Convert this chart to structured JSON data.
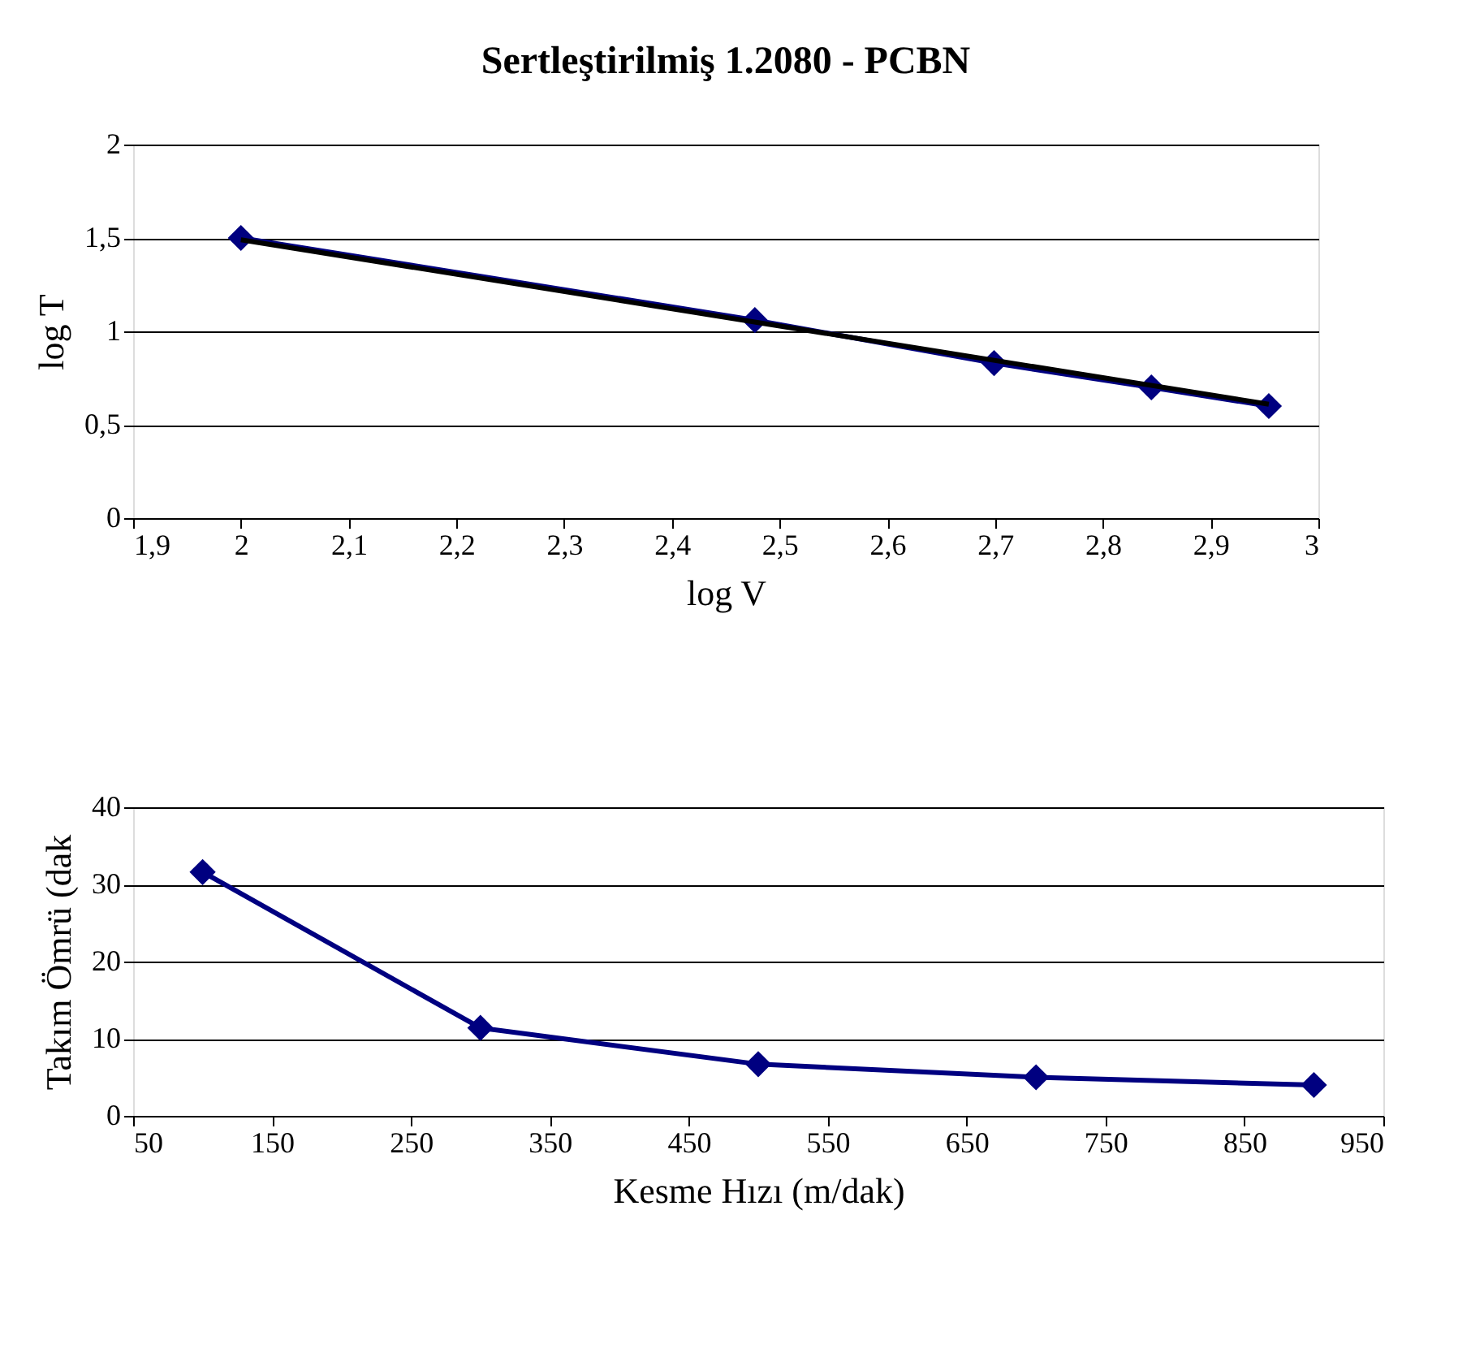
{
  "chart_data": [
    {
      "type": "line",
      "title": "Sertleştirilmiş 1.2080  - PCBN",
      "xlabel": "log V",
      "ylabel": "log T",
      "marker": "diamond",
      "grid": "y",
      "line_style": "solid",
      "series": [
        {
          "color": "#000080",
          "x": [
            2,
            2.477,
            2.699,
            2.845,
            2.954
          ],
          "values": [
            1.5,
            1.06,
            0.83,
            0.7,
            0.6
          ]
        },
        {
          "color": "#000000",
          "type": "line",
          "marker": "none",
          "x": [
            2,
            2.954
          ],
          "values": [
            1.49,
            0.61
          ]
        }
      ],
      "xlim": [
        1.9,
        3
      ],
      "xticks": [
        {
          "value": 1.9,
          "label": "1,9"
        },
        2,
        {
          "value": 2.1,
          "label": "2,1"
        },
        {
          "value": 2.2,
          "label": "2,2"
        },
        {
          "value": 2.3,
          "label": "2,3"
        },
        {
          "value": 2.4,
          "label": "2,4"
        },
        {
          "value": 2.5,
          "label": "2,5"
        },
        {
          "value": 2.6,
          "label": "2,6"
        },
        {
          "value": 2.7,
          "label": "2,7"
        },
        {
          "value": 2.8,
          "label": "2,8"
        },
        {
          "value": 2.9,
          "label": "2,9"
        },
        3
      ],
      "ylim": [
        0,
        2
      ],
      "yticks": [
        0,
        {
          "value": 0.5,
          "label": "0,5"
        },
        1,
        {
          "value": 1.5,
          "label": "1,5"
        },
        2
      ]
    },
    {
      "type": "line",
      "xlabel": "Kesme Hızı (m/dak)",
      "ylabel": "Takım Ömrü (dak",
      "marker": "diamond",
      "grid": "y",
      "line_style": "solid",
      "series": [
        {
          "color": "#000080",
          "x": [
            100,
            300,
            500,
            700,
            900
          ],
          "values": [
            31.6,
            11.4,
            6.7,
            5.0,
            4.0
          ]
        }
      ],
      "xlim": [
        50,
        950
      ],
      "xticks": [
        50,
        150,
        250,
        350,
        450,
        550,
        650,
        750,
        850,
        950
      ],
      "ylim": [
        0,
        40
      ],
      "yticks": [
        0,
        10,
        20,
        30,
        40
      ]
    }
  ]
}
